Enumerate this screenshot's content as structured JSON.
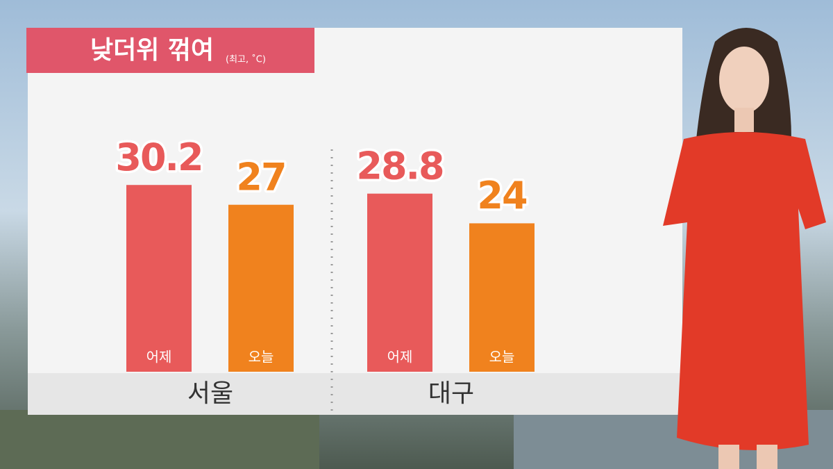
{
  "chart_data": {
    "type": "bar",
    "title": "낮더위 꺾여",
    "subtitle": "(최고, ˚C)",
    "categories": [
      "서울",
      "대구"
    ],
    "series": [
      {
        "name": "어제",
        "color": "#e85a5a",
        "values": [
          30.2,
          28.8
        ]
      },
      {
        "name": "오늘",
        "color": "#f0821e",
        "values": [
          27,
          24
        ]
      }
    ]
  }
}
